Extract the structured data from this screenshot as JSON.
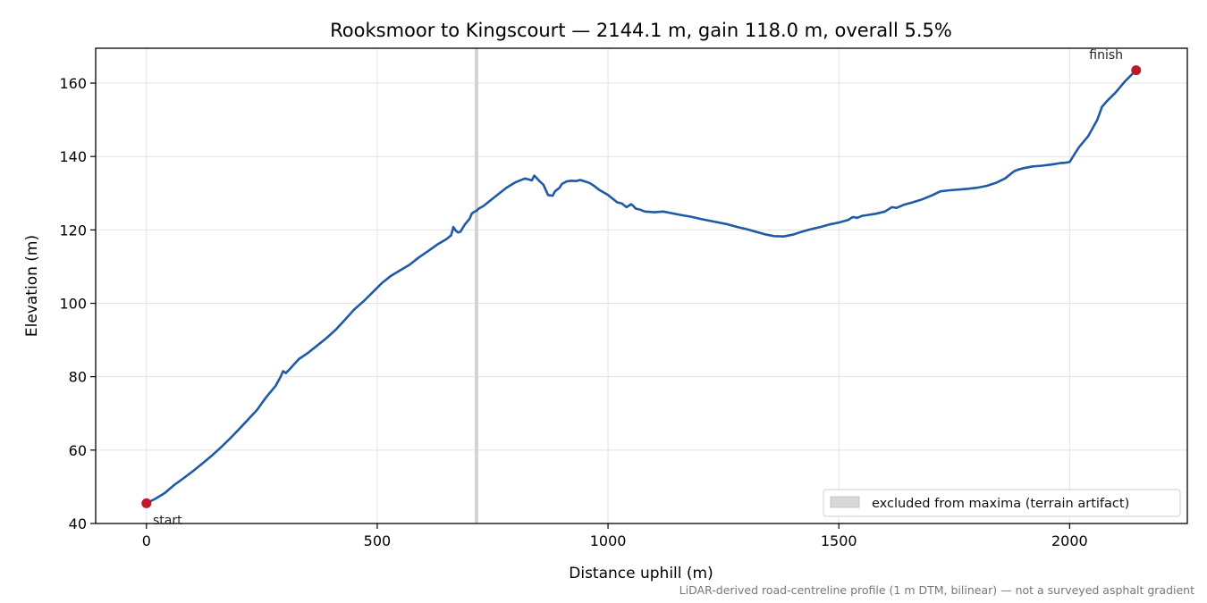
{
  "chart_data": {
    "type": "line",
    "title": "Rooksmoor to Kingscourt — 2144.1 m, gain 118.0 m, overall 5.5%",
    "xlabel": "Distance uphill (m)",
    "ylabel": "Elevation (m)",
    "xlim": [
      -110,
      2255
    ],
    "ylim": [
      40,
      169.5
    ],
    "xticks": [
      0,
      500,
      1000,
      1500,
      2000
    ],
    "yticks": [
      40,
      60,
      80,
      100,
      120,
      140,
      160
    ],
    "grid": true,
    "line_color": "#1f5aa6",
    "marker_color": "#c0182a",
    "excluded_x": 715,
    "series": [
      {
        "name": "",
        "x": [
          0,
          20,
          40,
          60,
          80,
          100,
          120,
          140,
          160,
          180,
          200,
          220,
          240,
          250,
          260,
          280,
          290,
          296,
          302,
          310,
          330,
          350,
          370,
          390,
          410,
          430,
          450,
          470,
          490,
          510,
          530,
          550,
          570,
          590,
          610,
          630,
          650,
          660,
          665,
          670,
          675,
          680,
          690,
          700,
          705,
          710,
          715,
          720,
          730,
          750,
          780,
          800,
          820,
          835,
          840,
          845,
          850,
          860,
          870,
          880,
          885,
          895,
          900,
          910,
          920,
          930,
          940,
          950,
          960,
          970,
          980,
          1000,
          1020,
          1030,
          1040,
          1050,
          1055,
          1060,
          1070,
          1080,
          1100,
          1120,
          1140,
          1160,
          1180,
          1200,
          1220,
          1240,
          1260,
          1280,
          1300,
          1320,
          1340,
          1360,
          1380,
          1400,
          1420,
          1440,
          1460,
          1480,
          1500,
          1520,
          1530,
          1540,
          1550,
          1560,
          1580,
          1600,
          1615,
          1625,
          1640,
          1660,
          1680,
          1700,
          1720,
          1740,
          1760,
          1780,
          1800,
          1820,
          1840,
          1860,
          1870,
          1880,
          1890,
          1900,
          1920,
          1940,
          1960,
          1980,
          1990,
          2000,
          2010,
          2020,
          2040,
          2060,
          2070,
          2080,
          2100,
          2120,
          2144.1
        ],
        "y": [
          45.5,
          46.8,
          48.3,
          50.5,
          52.3,
          54.2,
          56.2,
          58.3,
          60.6,
          63.0,
          65.6,
          68.3,
          71.0,
          72.8,
          74.5,
          77.5,
          79.8,
          81.5,
          81.0,
          82.0,
          84.8,
          86.5,
          88.5,
          90.5,
          92.8,
          95.5,
          98.3,
          100.5,
          103.0,
          105.5,
          107.5,
          109.0,
          110.5,
          112.5,
          114.2,
          116.0,
          117.5,
          118.5,
          120.8,
          119.8,
          119.3,
          119.5,
          121.5,
          123.0,
          124.5,
          124.9,
          125.2,
          125.8,
          126.5,
          128.5,
          131.5,
          133.0,
          134.0,
          133.5,
          134.8,
          134.2,
          133.5,
          132.3,
          129.5,
          129.3,
          130.5,
          131.5,
          132.5,
          133.2,
          133.4,
          133.3,
          133.6,
          133.2,
          132.8,
          132.0,
          131.0,
          129.5,
          127.5,
          127.2,
          126.2,
          127.0,
          126.5,
          125.8,
          125.5,
          125.0,
          124.8,
          125.0,
          124.5,
          124.0,
          123.6,
          123.0,
          122.5,
          122.0,
          121.5,
          120.8,
          120.2,
          119.5,
          118.8,
          118.3,
          118.2,
          118.7,
          119.5,
          120.2,
          120.8,
          121.5,
          122.0,
          122.7,
          123.5,
          123.3,
          123.8,
          124.0,
          124.4,
          125.0,
          126.2,
          126.0,
          126.8,
          127.5,
          128.3,
          129.3,
          130.5,
          130.8,
          131.0,
          131.2,
          131.5,
          132.0,
          132.8,
          134.0,
          135.0,
          136.0,
          136.5,
          136.8,
          137.3,
          137.5,
          137.8,
          138.2,
          138.3,
          138.5,
          140.5,
          142.5,
          145.5,
          150.0,
          153.5,
          155.0,
          157.5,
          160.5,
          163.5
        ]
      }
    ],
    "annotations": [
      {
        "text": "start",
        "x": 0,
        "y": 45.5
      },
      {
        "text": "finish",
        "x": 2144.1,
        "y": 163.5
      }
    ],
    "legend": {
      "position": "lower-right",
      "entries": [
        "excluded from maxima (terrain artifact)"
      ]
    },
    "footnote": "LiDAR-derived road-centreline profile (1 m DTM, bilinear) — not a surveyed asphalt gradient"
  }
}
